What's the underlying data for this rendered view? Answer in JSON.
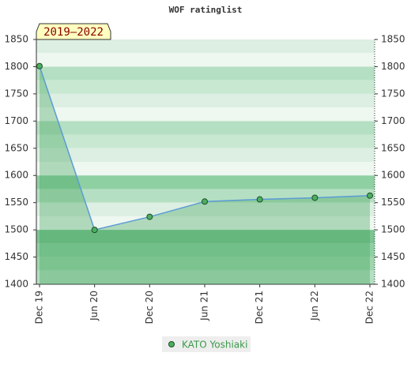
{
  "chart_data": {
    "type": "area",
    "title": "WOF ratinglist",
    "badge": "2019–2022",
    "categories": [
      "Dec 19",
      "Jun 20",
      "Dec 20",
      "Jun 21",
      "Dec 21",
      "Jun 22",
      "Dec 22"
    ],
    "series": [
      {
        "name": "KATO Yoshiaki",
        "color": "#5b9bd5",
        "values": [
          1801,
          1500,
          1524,
          1552,
          1556,
          1559,
          1563
        ]
      }
    ],
    "ylim": [
      1400,
      1850
    ],
    "yticks": [
      1400,
      1450,
      1500,
      1550,
      1600,
      1650,
      1700,
      1750,
      1800,
      1850
    ]
  }
}
